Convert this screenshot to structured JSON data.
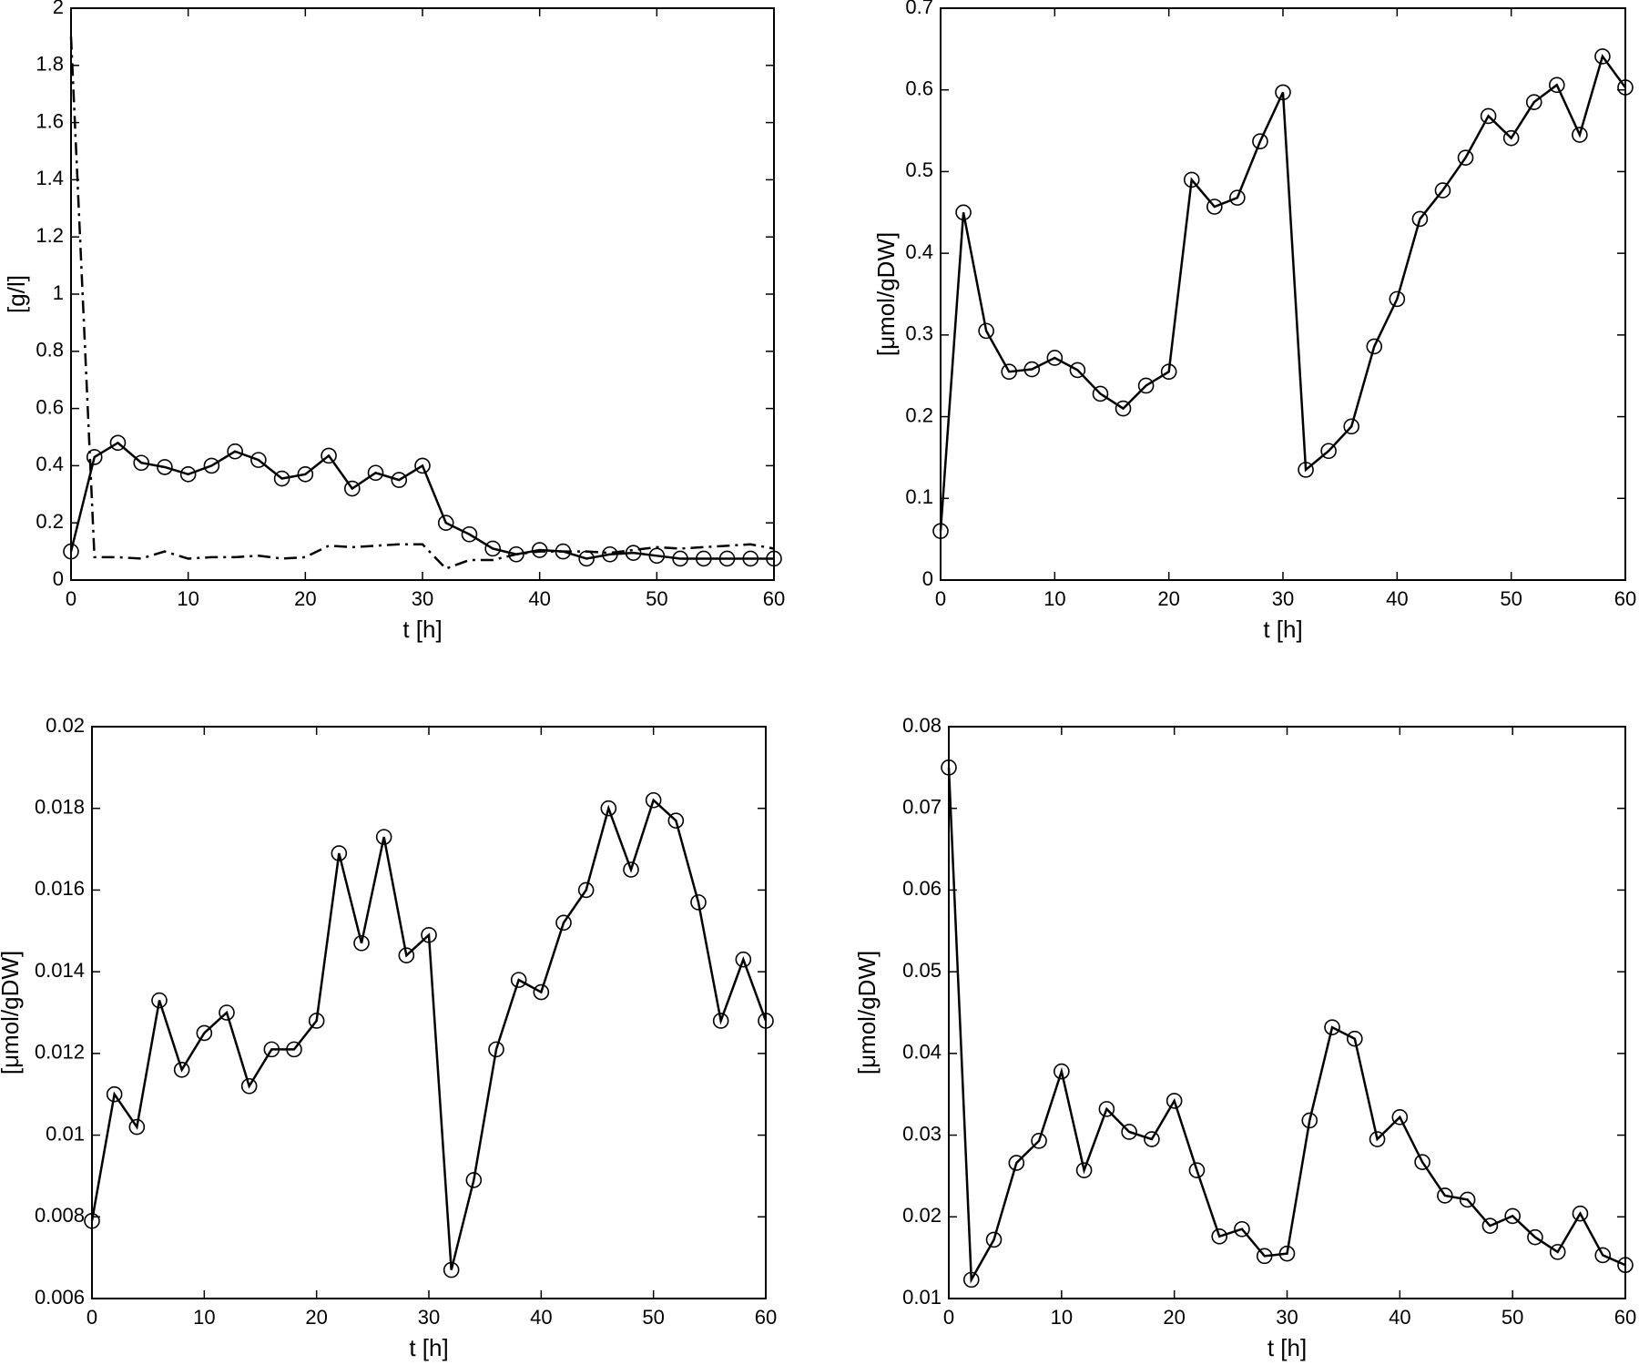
{
  "chart_data": [
    {
      "type": "line",
      "xlabel": "t [h]",
      "ylabel": "[g/l]",
      "x": [
        0,
        2,
        4,
        6,
        8,
        10,
        12,
        14,
        16,
        18,
        20,
        22,
        24,
        26,
        28,
        30,
        32,
        34,
        36,
        38,
        40,
        42,
        44,
        46,
        48,
        50,
        52,
        54,
        56,
        58,
        60
      ],
      "series": [
        {
          "color": "#000000",
          "marker": "o",
          "linestyle": "solid",
          "values": [
            0.1,
            0.43,
            0.48,
            0.41,
            0.395,
            0.37,
            0.4,
            0.45,
            0.42,
            0.355,
            0.37,
            0.435,
            0.32,
            0.375,
            0.35,
            0.4,
            0.2,
            0.16,
            0.11,
            0.09,
            0.105,
            0.1,
            0.075,
            0.09,
            0.095,
            0.085,
            0.075,
            0.075,
            0.075,
            0.075,
            0.075
          ]
        },
        {
          "color": "#000000",
          "marker": "none",
          "linestyle": "dashdot",
          "values": [
            1.9,
            0.08,
            0.08,
            0.075,
            0.1,
            0.075,
            0.08,
            0.08,
            0.085,
            0.075,
            0.08,
            0.12,
            0.115,
            0.12,
            0.125,
            0.125,
            0.04,
            0.07,
            0.07,
            0.09,
            0.1,
            0.1,
            0.1,
            0.095,
            0.105,
            0.115,
            0.11,
            0.115,
            0.12,
            0.125,
            0.11
          ]
        }
      ],
      "xlim": [
        0,
        60
      ],
      "xticks": [
        0,
        10,
        20,
        30,
        40,
        50,
        60
      ],
      "ylim": [
        0,
        2
      ],
      "yticks": [
        0,
        0.2,
        0.4,
        0.6,
        0.8,
        1,
        1.2,
        1.4,
        1.6,
        1.8,
        2
      ]
    },
    {
      "type": "line",
      "xlabel": "t [h]",
      "ylabel": "[μmol/gDW]",
      "x": [
        0,
        2,
        4,
        6,
        8,
        10,
        12,
        14,
        16,
        18,
        20,
        22,
        24,
        26,
        28,
        30,
        32,
        34,
        36,
        38,
        40,
        42,
        44,
        46,
        48,
        50,
        52,
        54,
        56,
        58,
        60
      ],
      "series": [
        {
          "color": "#000000",
          "marker": "o",
          "linestyle": "solid",
          "values": [
            0.06,
            0.45,
            0.305,
            0.255,
            0.258,
            0.272,
            0.257,
            0.228,
            0.21,
            0.238,
            0.255,
            0.49,
            0.457,
            0.468,
            0.537,
            0.597,
            0.135,
            0.158,
            0.188,
            0.286,
            0.344,
            0.442,
            0.477,
            0.517,
            0.568,
            0.541,
            0.585,
            0.606,
            0.545,
            0.641,
            0.603
          ]
        }
      ],
      "xlim": [
        0,
        60
      ],
      "xticks": [
        0,
        10,
        20,
        30,
        40,
        50,
        60
      ],
      "ylim": [
        0,
        0.7
      ],
      "yticks": [
        0,
        0.1,
        0.2,
        0.3,
        0.4,
        0.5,
        0.6,
        0.7
      ]
    },
    {
      "type": "line",
      "xlabel": "t [h]",
      "ylabel": "[μmol/gDW]",
      "x": [
        0,
        2,
        4,
        6,
        8,
        10,
        12,
        14,
        16,
        18,
        20,
        22,
        24,
        26,
        28,
        30,
        32,
        34,
        36,
        38,
        40,
        42,
        44,
        46,
        48,
        50,
        52,
        54,
        56,
        58,
        60
      ],
      "series": [
        {
          "color": "#000000",
          "marker": "o",
          "linestyle": "solid",
          "values": [
            0.0079,
            0.011,
            0.0102,
            0.0133,
            0.0116,
            0.0125,
            0.013,
            0.0112,
            0.0121,
            0.0121,
            0.0128,
            0.0169,
            0.0147,
            0.0173,
            0.0144,
            0.0149,
            0.0067,
            0.0089,
            0.0121,
            0.0138,
            0.0135,
            0.0152,
            0.016,
            0.018,
            0.0165,
            0.0182,
            0.0177,
            0.0157,
            0.0128,
            0.0143,
            0.0128
          ]
        }
      ],
      "xlim": [
        0,
        60
      ],
      "xticks": [
        0,
        10,
        20,
        30,
        40,
        50,
        60
      ],
      "ylim": [
        0.006,
        0.02
      ],
      "yticks": [
        0.006,
        0.008,
        0.01,
        0.012,
        0.014,
        0.016,
        0.018,
        0.02
      ]
    },
    {
      "type": "line",
      "xlabel": "t [h]",
      "ylabel": "[μmol/gDW]",
      "x": [
        0,
        2,
        4,
        6,
        8,
        10,
        12,
        14,
        16,
        18,
        20,
        22,
        24,
        26,
        28,
        30,
        32,
        34,
        36,
        38,
        40,
        42,
        44,
        46,
        48,
        50,
        52,
        54,
        56,
        58,
        60
      ],
      "series": [
        {
          "color": "#000000",
          "marker": "o",
          "linestyle": "solid",
          "values": [
            0.075,
            0.0123,
            0.0172,
            0.0266,
            0.0293,
            0.0378,
            0.0257,
            0.0332,
            0.0304,
            0.0295,
            0.0342,
            0.0257,
            0.0176,
            0.0185,
            0.0152,
            0.0155,
            0.0318,
            0.0432,
            0.0418,
            0.0295,
            0.0322,
            0.0267,
            0.0226,
            0.0221,
            0.0189,
            0.0201,
            0.0175,
            0.0157,
            0.0204,
            0.0153,
            0.0141
          ]
        }
      ],
      "xlim": [
        0,
        60
      ],
      "xticks": [
        0,
        10,
        20,
        30,
        40,
        50,
        60
      ],
      "ylim": [
        0.01,
        0.08
      ],
      "yticks": [
        0.01,
        0.02,
        0.03,
        0.04,
        0.05,
        0.06,
        0.07,
        0.08
      ]
    }
  ]
}
